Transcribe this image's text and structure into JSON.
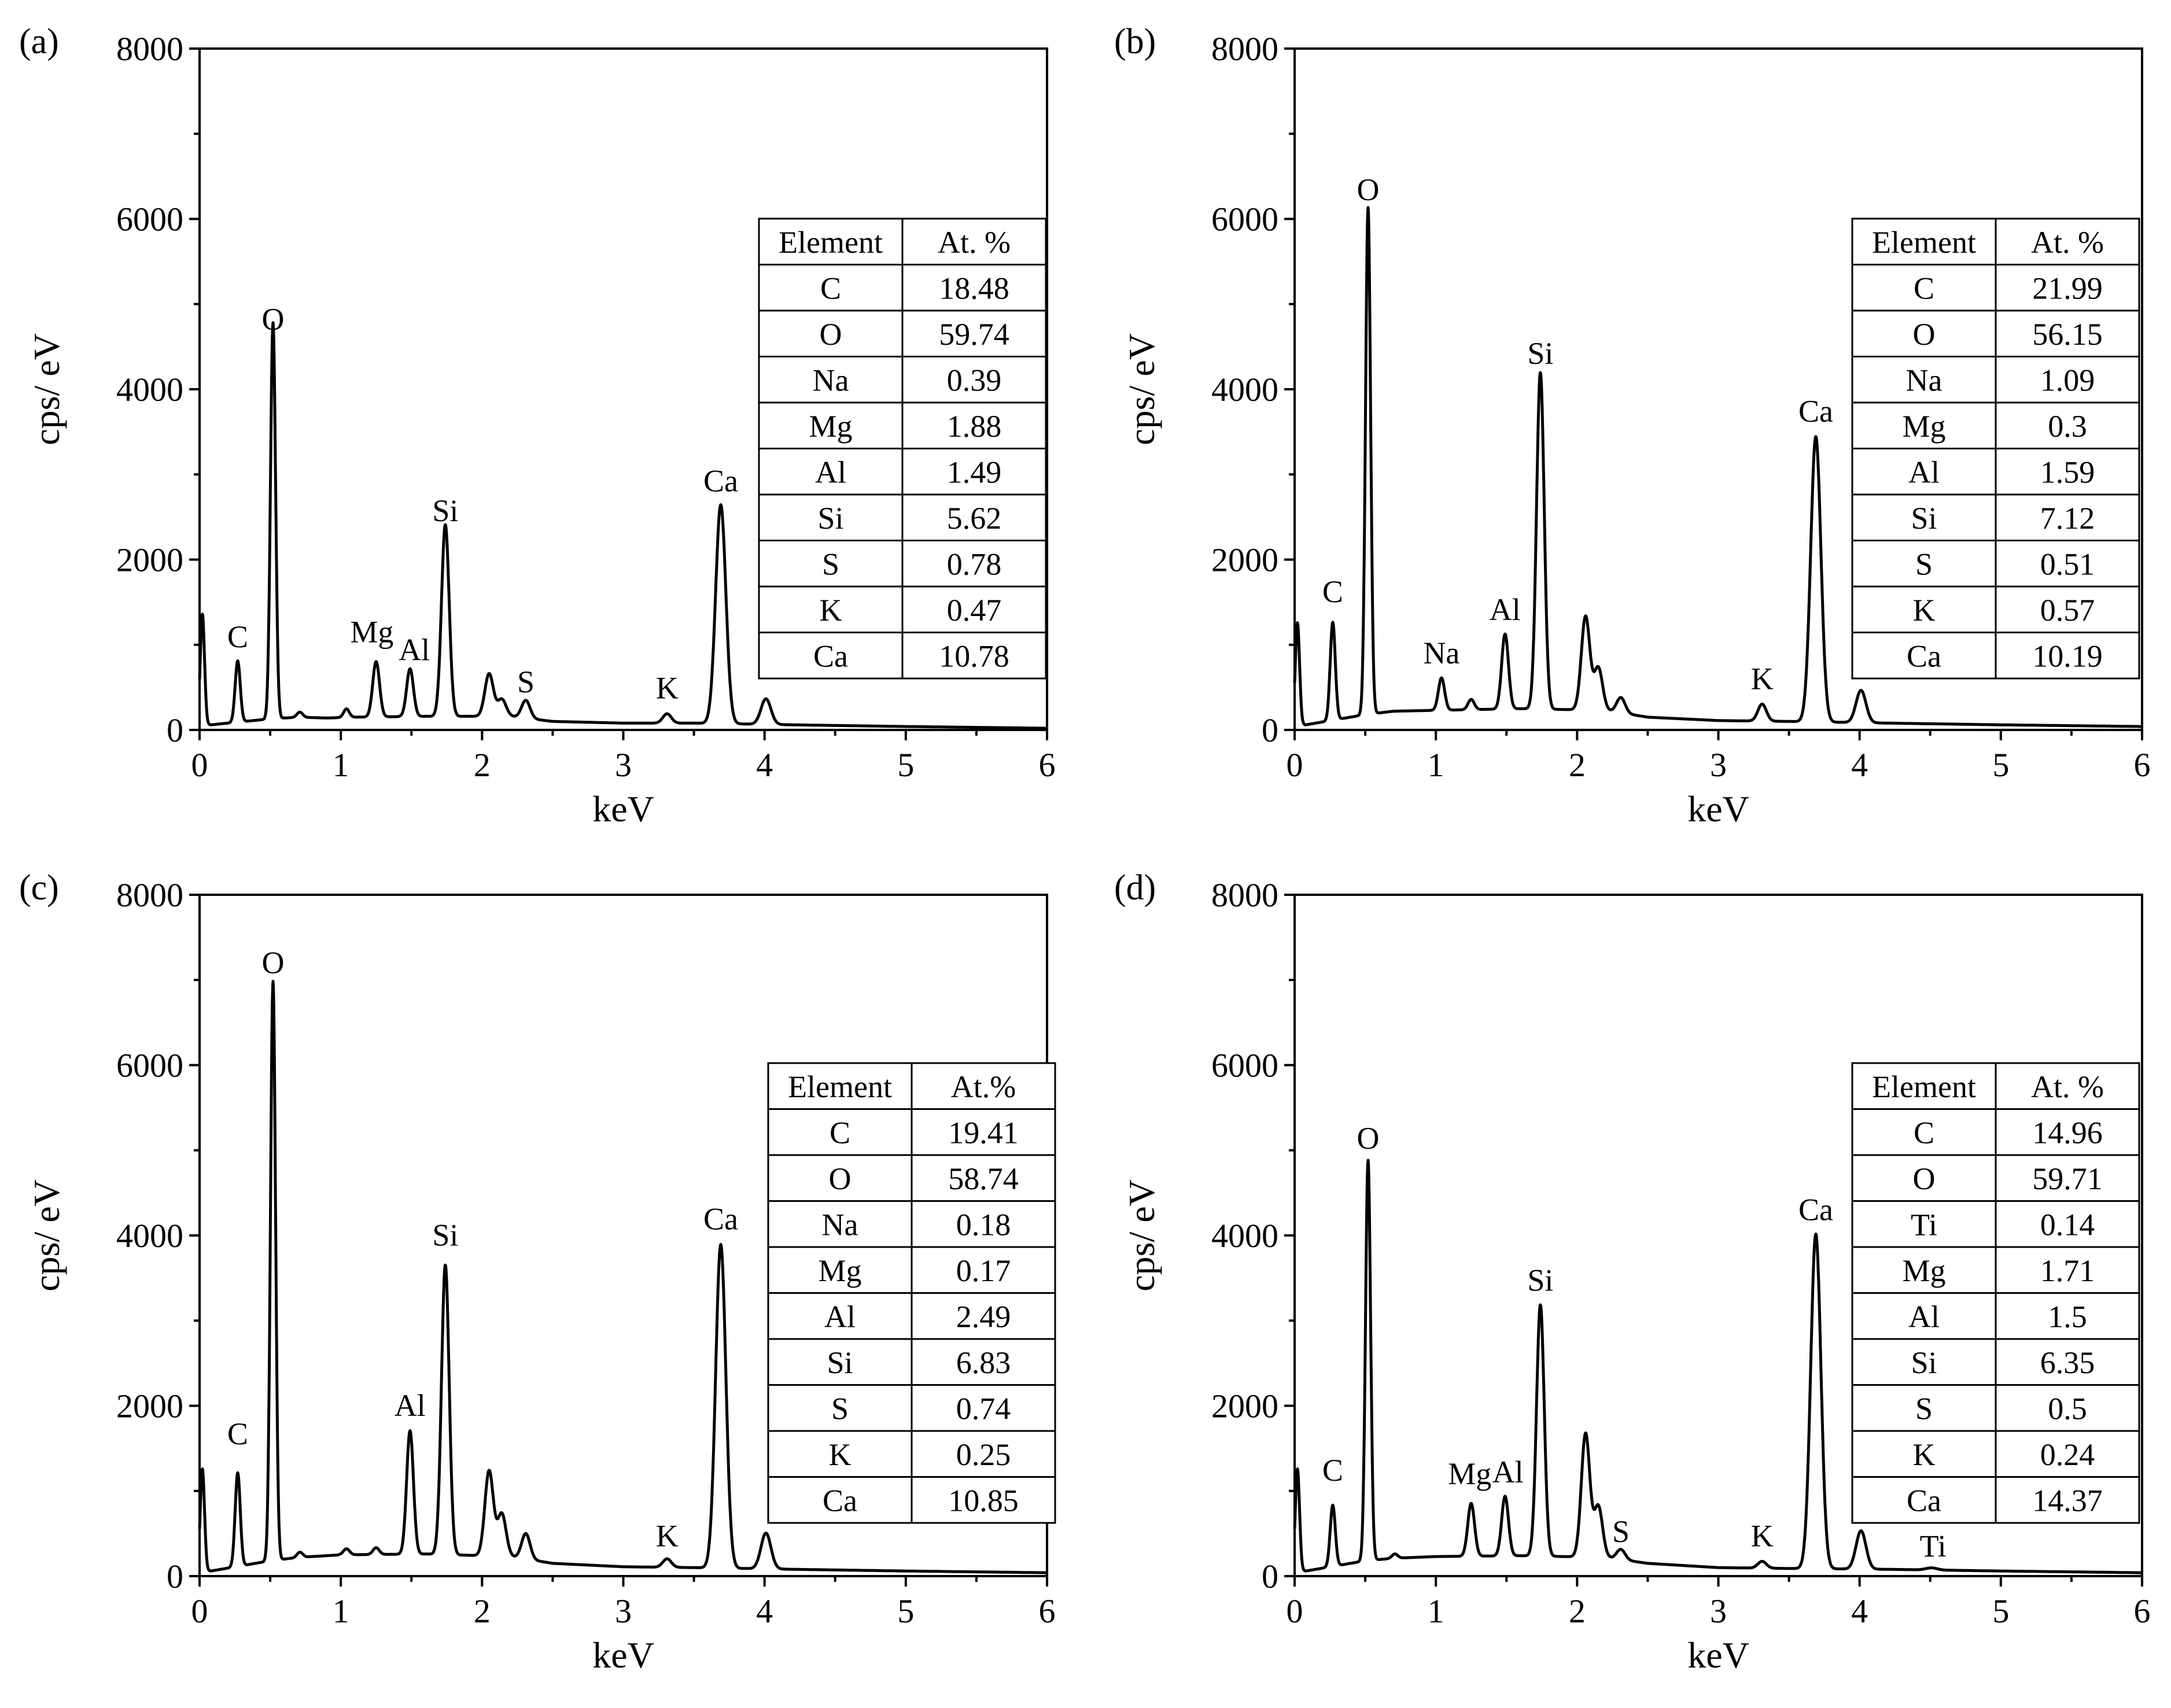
{
  "chart_data": [
    {
      "panel": "(a)",
      "type": "line",
      "xlabel": "keV",
      "ylabel": "cps/ eV",
      "xlim": [
        0,
        6
      ],
      "ylim": [
        0,
        8000
      ],
      "xticks": [
        "0",
        "1",
        "2",
        "3",
        "4",
        "5",
        "6"
      ],
      "yticks": [
        "0",
        "2000",
        "4000",
        "6000",
        "8000"
      ],
      "baseline": [
        [
          0.08,
          60
        ],
        [
          0.5,
          130
        ],
        [
          0.7,
          150
        ],
        [
          0.9,
          140
        ],
        [
          1.1,
          150
        ],
        [
          1.6,
          160
        ],
        [
          2.2,
          160
        ],
        [
          2.5,
          100
        ],
        [
          3.0,
          80
        ],
        [
          3.5,
          80
        ],
        [
          4.2,
          60
        ],
        [
          5.0,
          40
        ],
        [
          6.0,
          20
        ]
      ],
      "spectrum_peaks": [
        {
          "keV": 0.02,
          "cps": 1300,
          "width": 0.015
        },
        {
          "keV": 0.27,
          "cps": 720,
          "width": 0.018
        },
        {
          "keV": 0.52,
          "cps": 4650,
          "width": 0.018
        },
        {
          "keV": 0.71,
          "cps": 60,
          "width": 0.02
        },
        {
          "keV": 1.04,
          "cps": 100,
          "width": 0.02
        },
        {
          "keV": 1.25,
          "cps": 650,
          "width": 0.024
        },
        {
          "keV": 1.49,
          "cps": 560,
          "width": 0.024
        },
        {
          "keV": 1.74,
          "cps": 2250,
          "width": 0.027
        },
        {
          "keV": 2.05,
          "cps": 500,
          "width": 0.03
        },
        {
          "keV": 2.14,
          "cps": 200,
          "width": 0.03
        },
        {
          "keV": 2.31,
          "cps": 210,
          "width": 0.03
        },
        {
          "keV": 3.31,
          "cps": 110,
          "width": 0.03
        },
        {
          "keV": 3.69,
          "cps": 2570,
          "width": 0.036
        },
        {
          "keV": 4.01,
          "cps": 300,
          "width": 0.035
        }
      ],
      "peak_labels": [
        {
          "text": "O",
          "keV": 0.52,
          "cps": 4700
        },
        {
          "text": "C",
          "keV": 0.27,
          "cps": 970
        },
        {
          "text": "Mg",
          "keV": 1.22,
          "cps": 1030
        },
        {
          "text": "Al",
          "keV": 1.52,
          "cps": 820
        },
        {
          "text": "Si",
          "keV": 1.74,
          "cps": 2450
        },
        {
          "text": "S",
          "keV": 2.31,
          "cps": 440
        },
        {
          "text": "K",
          "keV": 3.31,
          "cps": 370
        },
        {
          "text": "Ca",
          "keV": 3.69,
          "cps": 2800
        }
      ],
      "table": {
        "header": [
          "Element",
          "At. %"
        ],
        "rows": [
          [
            "C",
            "18.48"
          ],
          [
            "O",
            "59.74"
          ],
          [
            "Na",
            "0.39"
          ],
          [
            "Mg",
            "1.88"
          ],
          [
            "Al",
            "1.49"
          ],
          [
            "Si",
            "5.62"
          ],
          [
            "S",
            "0.78"
          ],
          [
            "K",
            "0.47"
          ],
          [
            "Ca",
            "10.78"
          ]
        ]
      }
    },
    {
      "panel": "(b)",
      "type": "line",
      "xlabel": "keV",
      "ylabel": "cps/ eV",
      "xlim": [
        0,
        6
      ],
      "ylim": [
        0,
        8000
      ],
      "xticks": [
        "0",
        "1",
        "2",
        "3",
        "4",
        "5",
        "6"
      ],
      "yticks": [
        "0",
        "2000",
        "4000",
        "6000",
        "8000"
      ],
      "baseline": [
        [
          0.08,
          60
        ],
        [
          0.5,
          180
        ],
        [
          0.7,
          220
        ],
        [
          1.0,
          230
        ],
        [
          1.6,
          250
        ],
        [
          2.2,
          230
        ],
        [
          2.5,
          150
        ],
        [
          3.0,
          110
        ],
        [
          3.5,
          100
        ],
        [
          4.2,
          80
        ],
        [
          5.0,
          60
        ],
        [
          6.0,
          40
        ]
      ],
      "spectrum_peaks": [
        {
          "keV": 0.02,
          "cps": 1200,
          "width": 0.015
        },
        {
          "keV": 0.27,
          "cps": 1150,
          "width": 0.018
        },
        {
          "keV": 0.52,
          "cps": 5950,
          "width": 0.018
        },
        {
          "keV": 1.04,
          "cps": 380,
          "width": 0.022
        },
        {
          "keV": 1.25,
          "cps": 120,
          "width": 0.022
        },
        {
          "keV": 1.49,
          "cps": 880,
          "width": 0.024
        },
        {
          "keV": 1.74,
          "cps": 3950,
          "width": 0.027
        },
        {
          "keV": 2.06,
          "cps": 1100,
          "width": 0.03
        },
        {
          "keV": 2.15,
          "cps": 500,
          "width": 0.03
        },
        {
          "keV": 2.31,
          "cps": 180,
          "width": 0.03
        },
        {
          "keV": 3.31,
          "cps": 200,
          "width": 0.03
        },
        {
          "keV": 3.69,
          "cps": 3350,
          "width": 0.036
        },
        {
          "keV": 4.01,
          "cps": 380,
          "width": 0.035
        }
      ],
      "peak_labels": [
        {
          "text": "O",
          "keV": 0.52,
          "cps": 6220
        },
        {
          "text": "C",
          "keV": 0.27,
          "cps": 1500
        },
        {
          "text": "Na",
          "keV": 1.04,
          "cps": 780
        },
        {
          "text": "Al",
          "keV": 1.49,
          "cps": 1290
        },
        {
          "text": "Si",
          "keV": 1.74,
          "cps": 4300
        },
        {
          "text": "K",
          "keV": 3.31,
          "cps": 480
        },
        {
          "text": "Ca",
          "keV": 3.69,
          "cps": 3620
        }
      ],
      "table": {
        "header": [
          "Element",
          "At. %"
        ],
        "rows": [
          [
            "C",
            "21.99"
          ],
          [
            "O",
            "56.15"
          ],
          [
            "Na",
            "1.09"
          ],
          [
            "Mg",
            "0.3"
          ],
          [
            "Al",
            "1.59"
          ],
          [
            "Si",
            "7.12"
          ],
          [
            "S",
            "0.51"
          ],
          [
            "K",
            "0.57"
          ],
          [
            "Ca",
            "10.19"
          ]
        ]
      }
    },
    {
      "panel": "(c)",
      "type": "line",
      "xlabel": "keV",
      "ylabel": "cps/ eV",
      "xlim": [
        0,
        6
      ],
      "ylim": [
        0,
        8000
      ],
      "xticks": [
        "0",
        "1",
        "2",
        "3",
        "4",
        "5",
        "6"
      ],
      "yticks": [
        "0",
        "2000",
        "4000",
        "6000",
        "8000"
      ],
      "baseline": [
        [
          0.08,
          60
        ],
        [
          0.5,
          180
        ],
        [
          0.7,
          220
        ],
        [
          1.0,
          250
        ],
        [
          1.6,
          260
        ],
        [
          2.2,
          230
        ],
        [
          2.5,
          150
        ],
        [
          3.0,
          110
        ],
        [
          3.5,
          100
        ],
        [
          4.2,
          80
        ],
        [
          5.0,
          60
        ],
        [
          6.0,
          40
        ]
      ],
      "spectrum_peaks": [
        {
          "keV": 0.02,
          "cps": 1200,
          "width": 0.015
        },
        {
          "keV": 0.27,
          "cps": 1100,
          "width": 0.018
        },
        {
          "keV": 0.52,
          "cps": 6800,
          "width": 0.018
        },
        {
          "keV": 0.71,
          "cps": 60,
          "width": 0.02
        },
        {
          "keV": 1.04,
          "cps": 70,
          "width": 0.022
        },
        {
          "keV": 1.25,
          "cps": 80,
          "width": 0.022
        },
        {
          "keV": 1.49,
          "cps": 1450,
          "width": 0.024
        },
        {
          "keV": 1.74,
          "cps": 3400,
          "width": 0.027
        },
        {
          "keV": 2.05,
          "cps": 1000,
          "width": 0.03
        },
        {
          "keV": 2.14,
          "cps": 500,
          "width": 0.03
        },
        {
          "keV": 2.31,
          "cps": 300,
          "width": 0.03
        },
        {
          "keV": 3.31,
          "cps": 100,
          "width": 0.03
        },
        {
          "keV": 3.69,
          "cps": 3800,
          "width": 0.036
        },
        {
          "keV": 4.01,
          "cps": 420,
          "width": 0.035
        }
      ],
      "peak_labels": [
        {
          "text": "O",
          "keV": 0.52,
          "cps": 7080
        },
        {
          "text": "C",
          "keV": 0.27,
          "cps": 1550
        },
        {
          "text": "Al",
          "keV": 1.49,
          "cps": 1880
        },
        {
          "text": "Si",
          "keV": 1.74,
          "cps": 3880
        },
        {
          "text": "K",
          "keV": 3.31,
          "cps": 350
        },
        {
          "text": "Ca",
          "keV": 3.69,
          "cps": 4070
        }
      ],
      "table": {
        "header": [
          "Element",
          "At.%"
        ],
        "rows": [
          [
            "C",
            "19.41"
          ],
          [
            "O",
            "58.74"
          ],
          [
            "Na",
            "0.18"
          ],
          [
            "Mg",
            "0.17"
          ],
          [
            "Al",
            "2.49"
          ],
          [
            "Si",
            "6.83"
          ],
          [
            "S",
            "0.74"
          ],
          [
            "K",
            "0.25"
          ],
          [
            "Ca",
            "10.85"
          ]
        ]
      }
    },
    {
      "panel": "(d)",
      "type": "line",
      "xlabel": "keV",
      "ylabel": "cps/ eV",
      "xlim": [
        0,
        6
      ],
      "ylim": [
        0,
        8000
      ],
      "xticks": [
        "0",
        "1",
        "2",
        "3",
        "4",
        "5",
        "6"
      ],
      "yticks": [
        "0",
        "2000",
        "4000",
        "6000",
        "8000"
      ],
      "baseline": [
        [
          0.08,
          60
        ],
        [
          0.5,
          180
        ],
        [
          0.7,
          210
        ],
        [
          1.0,
          230
        ],
        [
          1.6,
          240
        ],
        [
          2.2,
          220
        ],
        [
          2.5,
          150
        ],
        [
          3.0,
          100
        ],
        [
          3.5,
          90
        ],
        [
          4.2,
          80
        ],
        [
          5.0,
          60
        ],
        [
          6.0,
          40
        ]
      ],
      "spectrum_peaks": [
        {
          "keV": 0.02,
          "cps": 1200,
          "width": 0.015
        },
        {
          "keV": 0.27,
          "cps": 720,
          "width": 0.018
        },
        {
          "keV": 0.52,
          "cps": 4700,
          "width": 0.018
        },
        {
          "keV": 0.71,
          "cps": 50,
          "width": 0.02
        },
        {
          "keV": 1.25,
          "cps": 620,
          "width": 0.024
        },
        {
          "keV": 1.49,
          "cps": 700,
          "width": 0.024
        },
        {
          "keV": 1.74,
          "cps": 2950,
          "width": 0.027
        },
        {
          "keV": 2.06,
          "cps": 1450,
          "width": 0.03
        },
        {
          "keV": 2.15,
          "cps": 600,
          "width": 0.03
        },
        {
          "keV": 2.31,
          "cps": 120,
          "width": 0.03
        },
        {
          "keV": 3.31,
          "cps": 80,
          "width": 0.03
        },
        {
          "keV": 3.69,
          "cps": 3930,
          "width": 0.036
        },
        {
          "keV": 4.01,
          "cps": 450,
          "width": 0.035
        },
        {
          "keV": 4.51,
          "cps": 25,
          "width": 0.04
        }
      ],
      "peak_labels": [
        {
          "text": "O",
          "keV": 0.52,
          "cps": 5020
        },
        {
          "text": "C",
          "keV": 0.27,
          "cps": 1120
        },
        {
          "text": "Mg",
          "keV": 1.24,
          "cps": 1080
        },
        {
          "text": "Al",
          "keV": 1.51,
          "cps": 1100
        },
        {
          "text": "Si",
          "keV": 1.74,
          "cps": 3350
        },
        {
          "text": "S",
          "keV": 2.31,
          "cps": 400
        },
        {
          "text": "K",
          "keV": 3.31,
          "cps": 350
        },
        {
          "text": "Ca",
          "keV": 3.69,
          "cps": 4180
        },
        {
          "text": "Ti",
          "keV": 4.52,
          "cps": 230
        }
      ],
      "table": {
        "header": [
          "Element",
          "At. %"
        ],
        "rows": [
          [
            "C",
            "14.96"
          ],
          [
            "O",
            "59.71"
          ],
          [
            "Ti",
            "0.14"
          ],
          [
            "Mg",
            "1.71"
          ],
          [
            "Al",
            "1.5"
          ],
          [
            "Si",
            "6.35"
          ],
          [
            "S",
            "0.5"
          ],
          [
            "K",
            "0.24"
          ],
          [
            "Ca",
            "14.37"
          ]
        ]
      }
    }
  ]
}
